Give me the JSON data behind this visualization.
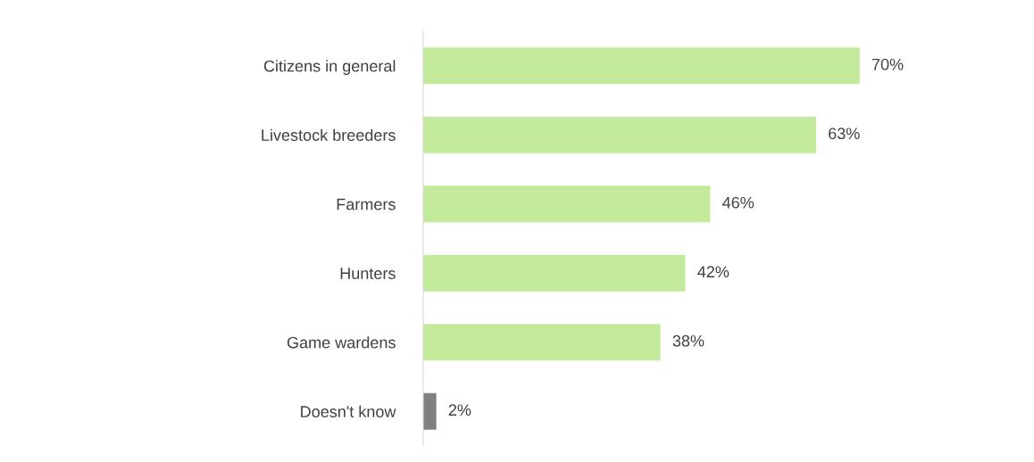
{
  "chart_data": {
    "type": "bar",
    "orientation": "horizontal",
    "categories": [
      "Citizens in general",
      "Livestock breeders",
      "Farmers",
      "Hunters",
      "Game wardens",
      "Doesn't know"
    ],
    "values": [
      70,
      63,
      46,
      42,
      38,
      2
    ],
    "colors": [
      "#c2ea9a",
      "#c2ea9a",
      "#c2ea9a",
      "#c2ea9a",
      "#c2ea9a",
      "#808080"
    ],
    "value_labels": [
      "70%",
      "63%",
      "46%",
      "42%",
      "38%",
      "2%"
    ]
  }
}
